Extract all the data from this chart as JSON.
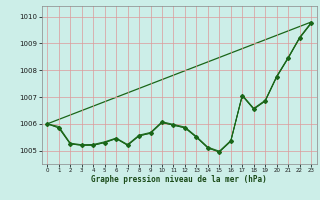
{
  "xlabel": "Graphe pression niveau de la mer (hPa)",
  "xlim": [
    -0.5,
    23.5
  ],
  "ylim": [
    1004.5,
    1010.4
  ],
  "yticks": [
    1005,
    1006,
    1007,
    1008,
    1009,
    1010
  ],
  "xticks": [
    0,
    1,
    2,
    3,
    4,
    5,
    6,
    7,
    8,
    9,
    10,
    11,
    12,
    13,
    14,
    15,
    16,
    17,
    18,
    19,
    20,
    21,
    22,
    23
  ],
  "background_color": "#cceee8",
  "grid_color": "#dd9999",
  "line_color": "#1a6618",
  "line1_y": [
    1006.0,
    1005.85,
    1005.25,
    1005.2,
    1005.2,
    1005.3,
    1005.45,
    1005.2,
    1005.55,
    1005.65,
    1006.05,
    1005.95,
    1005.85,
    1005.5,
    1005.1,
    1004.95,
    1005.35,
    1007.05,
    1006.55,
    1006.85,
    1007.75,
    1008.45,
    1009.2,
    1009.75
  ],
  "line2_y": [
    1006.0,
    1005.85,
    1005.25,
    1005.2,
    1005.2,
    1005.3,
    1005.45,
    1005.2,
    1005.55,
    1005.65,
    1006.05,
    1005.95,
    1005.85,
    1005.5,
    1005.1,
    1004.95,
    1005.35,
    1007.05,
    1006.55,
    1006.85,
    1007.75,
    1008.45,
    1009.2,
    1009.75
  ],
  "line3_y": [
    1006.0,
    1005.9,
    1005.28,
    1005.22,
    1005.23,
    1005.33,
    1005.47,
    1005.23,
    1005.58,
    1005.68,
    1006.08,
    1005.98,
    1005.88,
    1005.53,
    1005.13,
    1004.98,
    1005.38,
    1007.08,
    1006.58,
    1006.88,
    1007.78,
    1008.48,
    1009.23,
    1009.78
  ],
  "line4_y": [
    1006.0,
    1009.8
  ],
  "line4_x": [
    0,
    23
  ],
  "marker_style": "D",
  "marker_size": 2.0
}
